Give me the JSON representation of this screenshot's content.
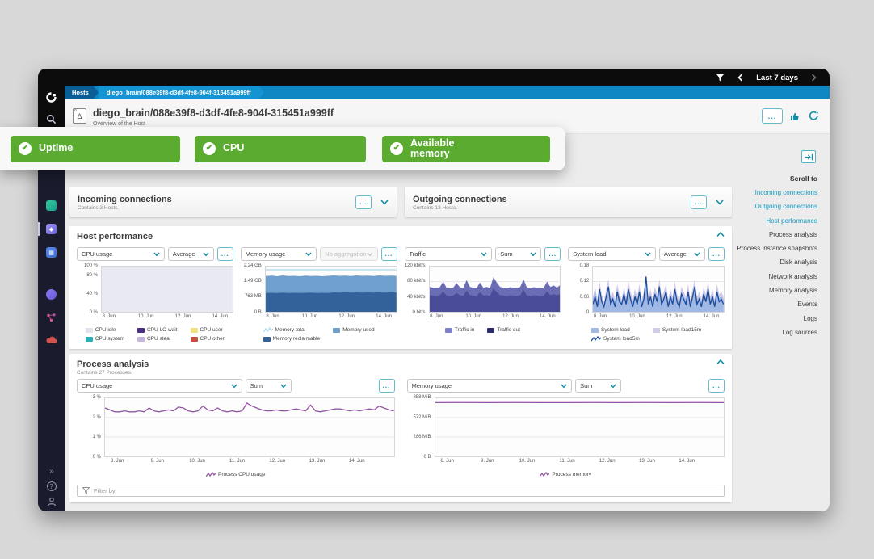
{
  "topbar": {
    "time_range": "Last 7 days"
  },
  "breadcrumb": {
    "root": "Hosts",
    "path": "diego_brain/088e39f8-d3df-4fe8-904f-315451a999ff"
  },
  "header": {
    "title": "diego_brain/088e39f8-d3df-4fe8-904f-315451a999ff",
    "subtitle": "Overview of the Host"
  },
  "badges": [
    {
      "label": "Uptime"
    },
    {
      "label": "CPU"
    },
    {
      "label": "Available memory"
    }
  ],
  "scroll_to": {
    "title": "Scroll to",
    "links": [
      {
        "label": "Incoming connections",
        "active": true
      },
      {
        "label": "Outgoing connections",
        "active": true
      },
      {
        "label": "Host performance",
        "active": true
      },
      {
        "label": "Process analysis",
        "active": false
      },
      {
        "label": "Process instance snapshots",
        "active": false
      },
      {
        "label": "Disk analysis",
        "active": false
      },
      {
        "label": "Network analysis",
        "active": false
      },
      {
        "label": "Memory analysis",
        "active": false
      },
      {
        "label": "Events",
        "active": false
      },
      {
        "label": "Logs",
        "active": false
      },
      {
        "label": "Log sources",
        "active": false
      }
    ]
  },
  "sections": {
    "incoming": {
      "title": "Incoming connections",
      "subtitle": "Contains 3 Hosts."
    },
    "outgoing": {
      "title": "Outgoing connections",
      "subtitle": "Contains 13 Hosts."
    },
    "host_performance": {
      "title": "Host performance"
    },
    "process_analysis": {
      "title": "Process analysis",
      "subtitle": "Contains 27 Processes."
    },
    "filter_placeholder": "Filter by"
  },
  "colors": {
    "accent_teal": "#128ea6",
    "link_blue": "#119dc4",
    "badge_green": "#5bab31",
    "breadcrumb_blue": "#0f86c4",
    "sidebar_navy": "#1a1b2d"
  },
  "chart_data": [
    {
      "id": "host-cpu",
      "panel": "host",
      "type": "area",
      "metric": "CPU usage",
      "aggregation": "Average",
      "agg_disabled": false,
      "ylim": [
        0,
        100
      ],
      "y_ticks": [
        {
          "v": 100,
          "label": "100 %"
        },
        {
          "v": 80,
          "label": "80 %"
        },
        {
          "v": 40,
          "label": "40 %"
        },
        {
          "v": 0,
          "label": "0 %"
        }
      ],
      "x_ticks": [
        {
          "f": 0.06,
          "label": "8. Jun"
        },
        {
          "f": 0.34,
          "label": "10. Jun"
        },
        {
          "f": 0.62,
          "label": "12. Jun"
        },
        {
          "f": 0.9,
          "label": "14. Jun"
        }
      ],
      "series": [
        {
          "name": "CPU idle",
          "type": "area",
          "color": "#e9e9f2",
          "values": [
            100,
            100
          ]
        }
      ],
      "legend_rows": 2,
      "legend": [
        {
          "label": "CPU idle",
          "color": "#e2e2ee",
          "glyph": "area"
        },
        {
          "label": "CPU system",
          "color": "#25b0ba",
          "glyph": "area"
        },
        {
          "label": "CPU I/O wait",
          "color": "#4b2e82",
          "glyph": "area"
        },
        {
          "label": "CPU steal",
          "color": "#c6b5df",
          "glyph": "area"
        },
        {
          "label": "CPU user",
          "color": "#efe083",
          "glyph": "area"
        },
        {
          "label": "CPU other",
          "color": "#c94d40",
          "glyph": "area"
        }
      ]
    },
    {
      "id": "host-memory",
      "panel": "host",
      "type": "area",
      "metric": "Memory usage",
      "aggregation": "No aggregation",
      "agg_disabled": true,
      "ylim": [
        0,
        2.24
      ],
      "y_ticks": [
        {
          "v": 2.24,
          "label": "2.24 GB"
        },
        {
          "v": 1.49,
          "label": "1.49 GB"
        },
        {
          "v": 0.763,
          "label": "763 MB"
        },
        {
          "v": 0,
          "label": "0 B"
        }
      ],
      "x_ticks": [
        {
          "f": 0.06,
          "label": "8. Jun"
        },
        {
          "f": 0.34,
          "label": "10. Jun"
        },
        {
          "f": 0.62,
          "label": "12. Jun"
        },
        {
          "f": 0.9,
          "label": "14. Jun"
        }
      ],
      "series": [
        {
          "name": "Memory reclaimable",
          "type": "area",
          "color": "#6f9fcc",
          "values": [
            1.77,
            1.79,
            1.76,
            1.8,
            1.77,
            1.78,
            1.76,
            1.79,
            1.77,
            1.78,
            1.76,
            1.78,
            1.8,
            1.78,
            1.79,
            1.77,
            1.8,
            1.78,
            1.79,
            1.77,
            1.8,
            1.78,
            1.79,
            1.78
          ]
        },
        {
          "name": "Memory used",
          "type": "area",
          "color": "#33629b",
          "values": [
            0.93,
            0.94,
            0.93,
            0.95,
            0.93,
            0.94,
            0.93,
            0.94,
            0.95,
            0.93,
            0.94,
            0.93,
            0.96,
            0.95,
            0.96,
            0.95,
            0.96,
            0.95,
            0.96,
            0.95,
            0.96,
            0.95,
            0.96,
            0.95
          ]
        },
        {
          "name": "Memory total",
          "type": "line",
          "color": "#a9d8ec",
          "values": [
            2.08,
            2.08
          ]
        }
      ],
      "legend_rows": 2,
      "legend": [
        {
          "label": "Memory total",
          "color": "#a9d8ec",
          "glyph": "line"
        },
        {
          "label": "Memory reclaimable",
          "color": "#33629b",
          "glyph": "area"
        },
        {
          "label": "Memory used",
          "color": "#6f9fcc",
          "glyph": "area"
        }
      ]
    },
    {
      "id": "host-traffic",
      "panel": "host",
      "type": "area",
      "metric": "Traffic",
      "aggregation": "Sum",
      "agg_disabled": false,
      "ylim": [
        0,
        120
      ],
      "y_ticks": [
        {
          "v": 120,
          "label": "120 kbit/s"
        },
        {
          "v": 80,
          "label": "80 kbit/s"
        },
        {
          "v": 40,
          "label": "40 kbit/s"
        },
        {
          "v": 0,
          "label": "0 bit/s"
        }
      ],
      "x_ticks": [
        {
          "f": 0.06,
          "label": "8. Jun"
        },
        {
          "f": 0.34,
          "label": "10. Jun"
        },
        {
          "f": 0.62,
          "label": "12. Jun"
        },
        {
          "f": 0.9,
          "label": "14. Jun"
        }
      ],
      "series": [
        {
          "name": "Traffic in",
          "type": "area",
          "color": "#6b6db4",
          "values": [
            66,
            64,
            63,
            65,
            80,
            64,
            62,
            64,
            76,
            65,
            63,
            84,
            66,
            64,
            63,
            78,
            64,
            66,
            63,
            92,
            78,
            66,
            64,
            63,
            65,
            64,
            63,
            66,
            86,
            64,
            63,
            65,
            64,
            62,
            63,
            80,
            66,
            70,
            64,
            72
          ]
        },
        {
          "name": "Traffic out",
          "type": "area",
          "color": "#4a4c99",
          "values": [
            44,
            43,
            42,
            44,
            54,
            43,
            41,
            43,
            50,
            44,
            42,
            56,
            44,
            43,
            42,
            52,
            43,
            44,
            42,
            62,
            52,
            44,
            43,
            42,
            44,
            43,
            42,
            44,
            58,
            43,
            42,
            44,
            43,
            41,
            42,
            54,
            44,
            47,
            43,
            48
          ]
        }
      ],
      "legend_rows": 1,
      "legend": [
        {
          "label": "Traffic in",
          "color": "#7e80c8",
          "glyph": "area"
        },
        {
          "label": "Traffic out",
          "color": "#2b2d6e",
          "glyph": "area"
        }
      ]
    },
    {
      "id": "host-load",
      "panel": "host",
      "type": "line",
      "metric": "System load",
      "aggregation": "Average",
      "agg_disabled": false,
      "ylim": [
        0,
        0.18
      ],
      "y_ticks": [
        {
          "v": 0.18,
          "label": "0.18"
        },
        {
          "v": 0.12,
          "label": "0.12"
        },
        {
          "v": 0.06,
          "label": "0.06"
        },
        {
          "v": 0,
          "label": "0"
        }
      ],
      "x_ticks": [
        {
          "f": 0.06,
          "label": "8. Jun"
        },
        {
          "f": 0.34,
          "label": "10. Jun"
        },
        {
          "f": 0.62,
          "label": "12. Jun"
        },
        {
          "f": 0.9,
          "label": "14. Jun"
        }
      ],
      "series": [
        {
          "name": "System load15m",
          "type": "area",
          "color": "#d3c9e8",
          "values": [
            0.06,
            0.1,
            0.05,
            0.12,
            0.07,
            0.04,
            0.09,
            0.13,
            0.06,
            0.08,
            0.05,
            0.11,
            0.07,
            0.05,
            0.1,
            0.06,
            0.12,
            0.08,
            0.05,
            0.09,
            0.06,
            0.11,
            0.05,
            0.08,
            0.12,
            0.06,
            0.09,
            0.05,
            0.1,
            0.07,
            0.13,
            0.06,
            0.08,
            0.11,
            0.05,
            0.09,
            0.06,
            0.12,
            0.07,
            0.05,
            0.1,
            0.08,
            0.06,
            0.11,
            0.05,
            0.09,
            0.13,
            0.06,
            0.08,
            0.05,
            0.1,
            0.07,
            0.12,
            0.06,
            0.09,
            0.05,
            0.11,
            0.07,
            0.08,
            0.06
          ]
        },
        {
          "name": "System load",
          "type": "area",
          "color": "#9fb8e4",
          "values": [
            0.05,
            0.08,
            0.04,
            0.09,
            0.055,
            0.03,
            0.07,
            0.1,
            0.05,
            0.06,
            0.04,
            0.09,
            0.055,
            0.04,
            0.08,
            0.05,
            0.09,
            0.06,
            0.04,
            0.07,
            0.05,
            0.09,
            0.04,
            0.06,
            0.1,
            0.05,
            0.07,
            0.04,
            0.08,
            0.055,
            0.1,
            0.05,
            0.06,
            0.09,
            0.04,
            0.07,
            0.05,
            0.09,
            0.055,
            0.04,
            0.08,
            0.06,
            0.05,
            0.09,
            0.04,
            0.07,
            0.1,
            0.05,
            0.06,
            0.04,
            0.08,
            0.055,
            0.09,
            0.05,
            0.07,
            0.04,
            0.09,
            0.055,
            0.06,
            0.05
          ]
        },
        {
          "name": "System load5m",
          "type": "line",
          "color": "#1c4b9b",
          "values": [
            0.03,
            0.06,
            0.02,
            0.09,
            0.04,
            0.02,
            0.06,
            0.1,
            0.03,
            0.05,
            0.02,
            0.08,
            0.04,
            0.03,
            0.07,
            0.03,
            0.09,
            0.05,
            0.02,
            0.06,
            0.03,
            0.08,
            0.02,
            0.05,
            0.14,
            0.03,
            0.06,
            0.02,
            0.07,
            0.04,
            0.1,
            0.03,
            0.05,
            0.08,
            0.02,
            0.06,
            0.03,
            0.09,
            0.04,
            0.02,
            0.07,
            0.05,
            0.03,
            0.08,
            0.02,
            0.06,
            0.1,
            0.03,
            0.05,
            0.02,
            0.07,
            0.04,
            0.09,
            0.03,
            0.06,
            0.02,
            0.08,
            0.04,
            0.05,
            0.03
          ]
        }
      ],
      "legend_rows": 2,
      "legend": [
        {
          "label": "System load",
          "color": "#9fb8e4",
          "glyph": "area"
        },
        {
          "label": "System load5m",
          "color": "#1c4b9b",
          "glyph": "line"
        },
        {
          "label": "System load15m",
          "color": "#d3c9e8",
          "glyph": "area"
        }
      ]
    },
    {
      "id": "process-cpu",
      "panel": "process",
      "type": "line",
      "metric": "CPU usage",
      "aggregation": "Sum",
      "agg_disabled": false,
      "ylim": [
        0,
        3
      ],
      "y_ticks": [
        {
          "v": 3,
          "label": "3 %"
        },
        {
          "v": 2,
          "label": "2 %"
        },
        {
          "v": 1,
          "label": "1 %"
        },
        {
          "v": 0,
          "label": "0 %"
        }
      ],
      "x_ticks": [
        {
          "f": 0.045,
          "label": "8. Jun"
        },
        {
          "f": 0.183,
          "label": "9. Jun"
        },
        {
          "f": 0.32,
          "label": "10. Jun"
        },
        {
          "f": 0.458,
          "label": "11. Jun"
        },
        {
          "f": 0.596,
          "label": "12. Jun"
        },
        {
          "f": 0.733,
          "label": "13. Jun"
        },
        {
          "f": 0.87,
          "label": "14. Jun"
        }
      ],
      "series": [
        {
          "name": "Process CPU usage",
          "type": "line",
          "color": "#9156a3",
          "values": [
            2.5,
            2.4,
            2.3,
            2.3,
            2.35,
            2.3,
            2.3,
            2.35,
            2.3,
            2.5,
            2.35,
            2.3,
            2.35,
            2.4,
            2.35,
            2.55,
            2.5,
            2.35,
            2.3,
            2.35,
            2.6,
            2.4,
            2.35,
            2.5,
            2.35,
            2.3,
            2.35,
            2.3,
            2.35,
            2.75,
            2.6,
            2.5,
            2.4,
            2.35,
            2.35,
            2.4,
            2.35,
            2.35,
            2.4,
            2.45,
            2.4,
            2.35,
            2.65,
            2.35,
            2.3,
            2.35,
            2.4,
            2.45,
            2.45,
            2.4,
            2.35,
            2.4,
            2.35,
            2.4,
            2.45,
            2.4,
            2.6,
            2.5,
            2.4,
            2.35
          ]
        }
      ],
      "legend_rows": 1,
      "legend": [
        {
          "label": "Process CPU usage",
          "color": "#9156a3",
          "glyph": "line"
        }
      ]
    },
    {
      "id": "process-memory",
      "panel": "process",
      "type": "line",
      "metric": "Memory usage",
      "aggregation": "Sum",
      "agg_disabled": false,
      "ylim": [
        0,
        858
      ],
      "y_ticks": [
        {
          "v": 858,
          "label": "858 MiB"
        },
        {
          "v": 572,
          "label": "572 MiB"
        },
        {
          "v": 286,
          "label": "286 MiB"
        },
        {
          "v": 0,
          "label": "0 B"
        }
      ],
      "x_ticks": [
        {
          "f": 0.045,
          "label": "8. Jun"
        },
        {
          "f": 0.183,
          "label": "9. Jun"
        },
        {
          "f": 0.32,
          "label": "10. Jun"
        },
        {
          "f": 0.458,
          "label": "11. Jun"
        },
        {
          "f": 0.596,
          "label": "12. Jun"
        },
        {
          "f": 0.733,
          "label": "13. Jun"
        },
        {
          "f": 0.87,
          "label": "14. Jun"
        }
      ],
      "series": [
        {
          "name": "Process memory",
          "type": "line",
          "color": "#9156a3",
          "values": [
            794,
            795,
            794,
            795,
            794,
            794,
            795,
            794,
            795,
            794,
            795,
            794
          ]
        }
      ],
      "legend_rows": 1,
      "legend": [
        {
          "label": "Process memory",
          "color": "#9156a3",
          "glyph": "line"
        }
      ]
    }
  ]
}
